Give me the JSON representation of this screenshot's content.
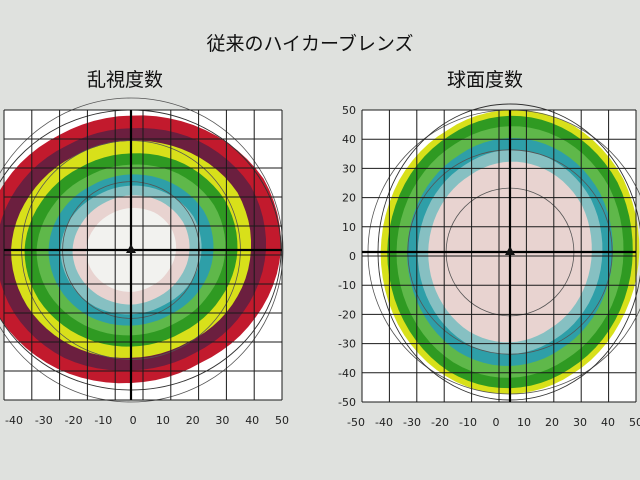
{
  "title": "従来のハイカーブレンズ",
  "panels": [
    {
      "id": "astigmatism",
      "label": "乱視度数",
      "x_ticks": [
        "-40",
        "-30",
        "-20",
        "-10",
        "0",
        "10",
        "20",
        "30",
        "40",
        "50"
      ],
      "y_ticks": [],
      "zones": [
        {
          "color": "#c21a2d",
          "r": [
            1.0,
            0.97,
            0.95,
            0.96,
            0.99,
            1.02,
            1.0,
            0.96,
            0.93,
            0.95,
            0.98,
            1.0
          ]
        },
        {
          "color": "#6b1f3f",
          "r": [
            0.9,
            0.88,
            0.86,
            0.87,
            0.9,
            0.92,
            0.9,
            0.87,
            0.85,
            0.86,
            0.89,
            0.9
          ]
        },
        {
          "color": "#d8e01a",
          "r": [
            0.8,
            0.78,
            0.77,
            0.78,
            0.8,
            0.82,
            0.8,
            0.78,
            0.76,
            0.77,
            0.79,
            0.8
          ]
        },
        {
          "color": "#2f9a22",
          "r": [
            0.71,
            0.69,
            0.68,
            0.69,
            0.71,
            0.72,
            0.71,
            0.69,
            0.68,
            0.69,
            0.7,
            0.71
          ]
        },
        {
          "color": "#5fb84a",
          "r": [
            0.63,
            0.61,
            0.6,
            0.61,
            0.63,
            0.64,
            0.63,
            0.61,
            0.6,
            0.61,
            0.62,
            0.63
          ]
        },
        {
          "color": "#2e9fa8",
          "r": [
            0.55,
            0.54,
            0.53,
            0.54,
            0.55,
            0.56,
            0.55,
            0.54,
            0.53,
            0.54,
            0.55,
            0.55
          ]
        },
        {
          "color": "#86c0c2",
          "r": [
            0.47,
            0.46,
            0.45,
            0.46,
            0.47,
            0.48,
            0.47,
            0.46,
            0.45,
            0.46,
            0.47,
            0.47
          ]
        },
        {
          "color": "#e8d3d0",
          "r": [
            0.39,
            0.38,
            0.38,
            0.39,
            0.4,
            0.4,
            0.39,
            0.38,
            0.38,
            0.39,
            0.39,
            0.39
          ]
        },
        {
          "color": "#f2f2ef",
          "r": [
            0.3,
            0.29,
            0.29,
            0.3,
            0.31,
            0.31,
            0.3,
            0.29,
            0.29,
            0.3,
            0.3,
            0.3
          ]
        }
      ]
    },
    {
      "id": "sphere",
      "label": "球面度数",
      "x_ticks": [
        "-50",
        "-40",
        "-30",
        "-20",
        "-10",
        "0",
        "10",
        "20",
        "30",
        "40",
        "50"
      ],
      "y_ticks": [
        "50",
        "40",
        "30",
        "20",
        "10",
        "0",
        "-10",
        "-20",
        "-30",
        "-40",
        "-50"
      ],
      "zones": [
        {
          "color": "#d8e01a",
          "r": [
            0.98,
            0.97,
            0.95,
            0.96,
            0.98,
            0.99,
            0.98,
            0.96,
            0.95,
            0.96,
            0.97,
            0.98
          ]
        },
        {
          "color": "#2f9a22",
          "r": [
            0.93,
            0.92,
            0.91,
            0.92,
            0.93,
            0.94,
            0.93,
            0.92,
            0.91,
            0.92,
            0.93,
            0.93
          ]
        },
        {
          "color": "#5fb84a",
          "r": [
            0.86,
            0.85,
            0.84,
            0.85,
            0.86,
            0.87,
            0.86,
            0.85,
            0.84,
            0.85,
            0.86,
            0.86
          ]
        },
        {
          "color": "#2e9fa8",
          "r": [
            0.78,
            0.77,
            0.76,
            0.77,
            0.78,
            0.79,
            0.78,
            0.77,
            0.76,
            0.77,
            0.78,
            0.78
          ]
        },
        {
          "color": "#86c0c2",
          "r": [
            0.7,
            0.69,
            0.68,
            0.69,
            0.7,
            0.71,
            0.7,
            0.69,
            0.68,
            0.69,
            0.7,
            0.7
          ]
        },
        {
          "color": "#e8d3d0",
          "r": [
            0.62,
            0.61,
            0.6,
            0.61,
            0.62,
            0.63,
            0.62,
            0.61,
            0.6,
            0.61,
            0.62,
            0.62
          ]
        }
      ]
    }
  ]
}
